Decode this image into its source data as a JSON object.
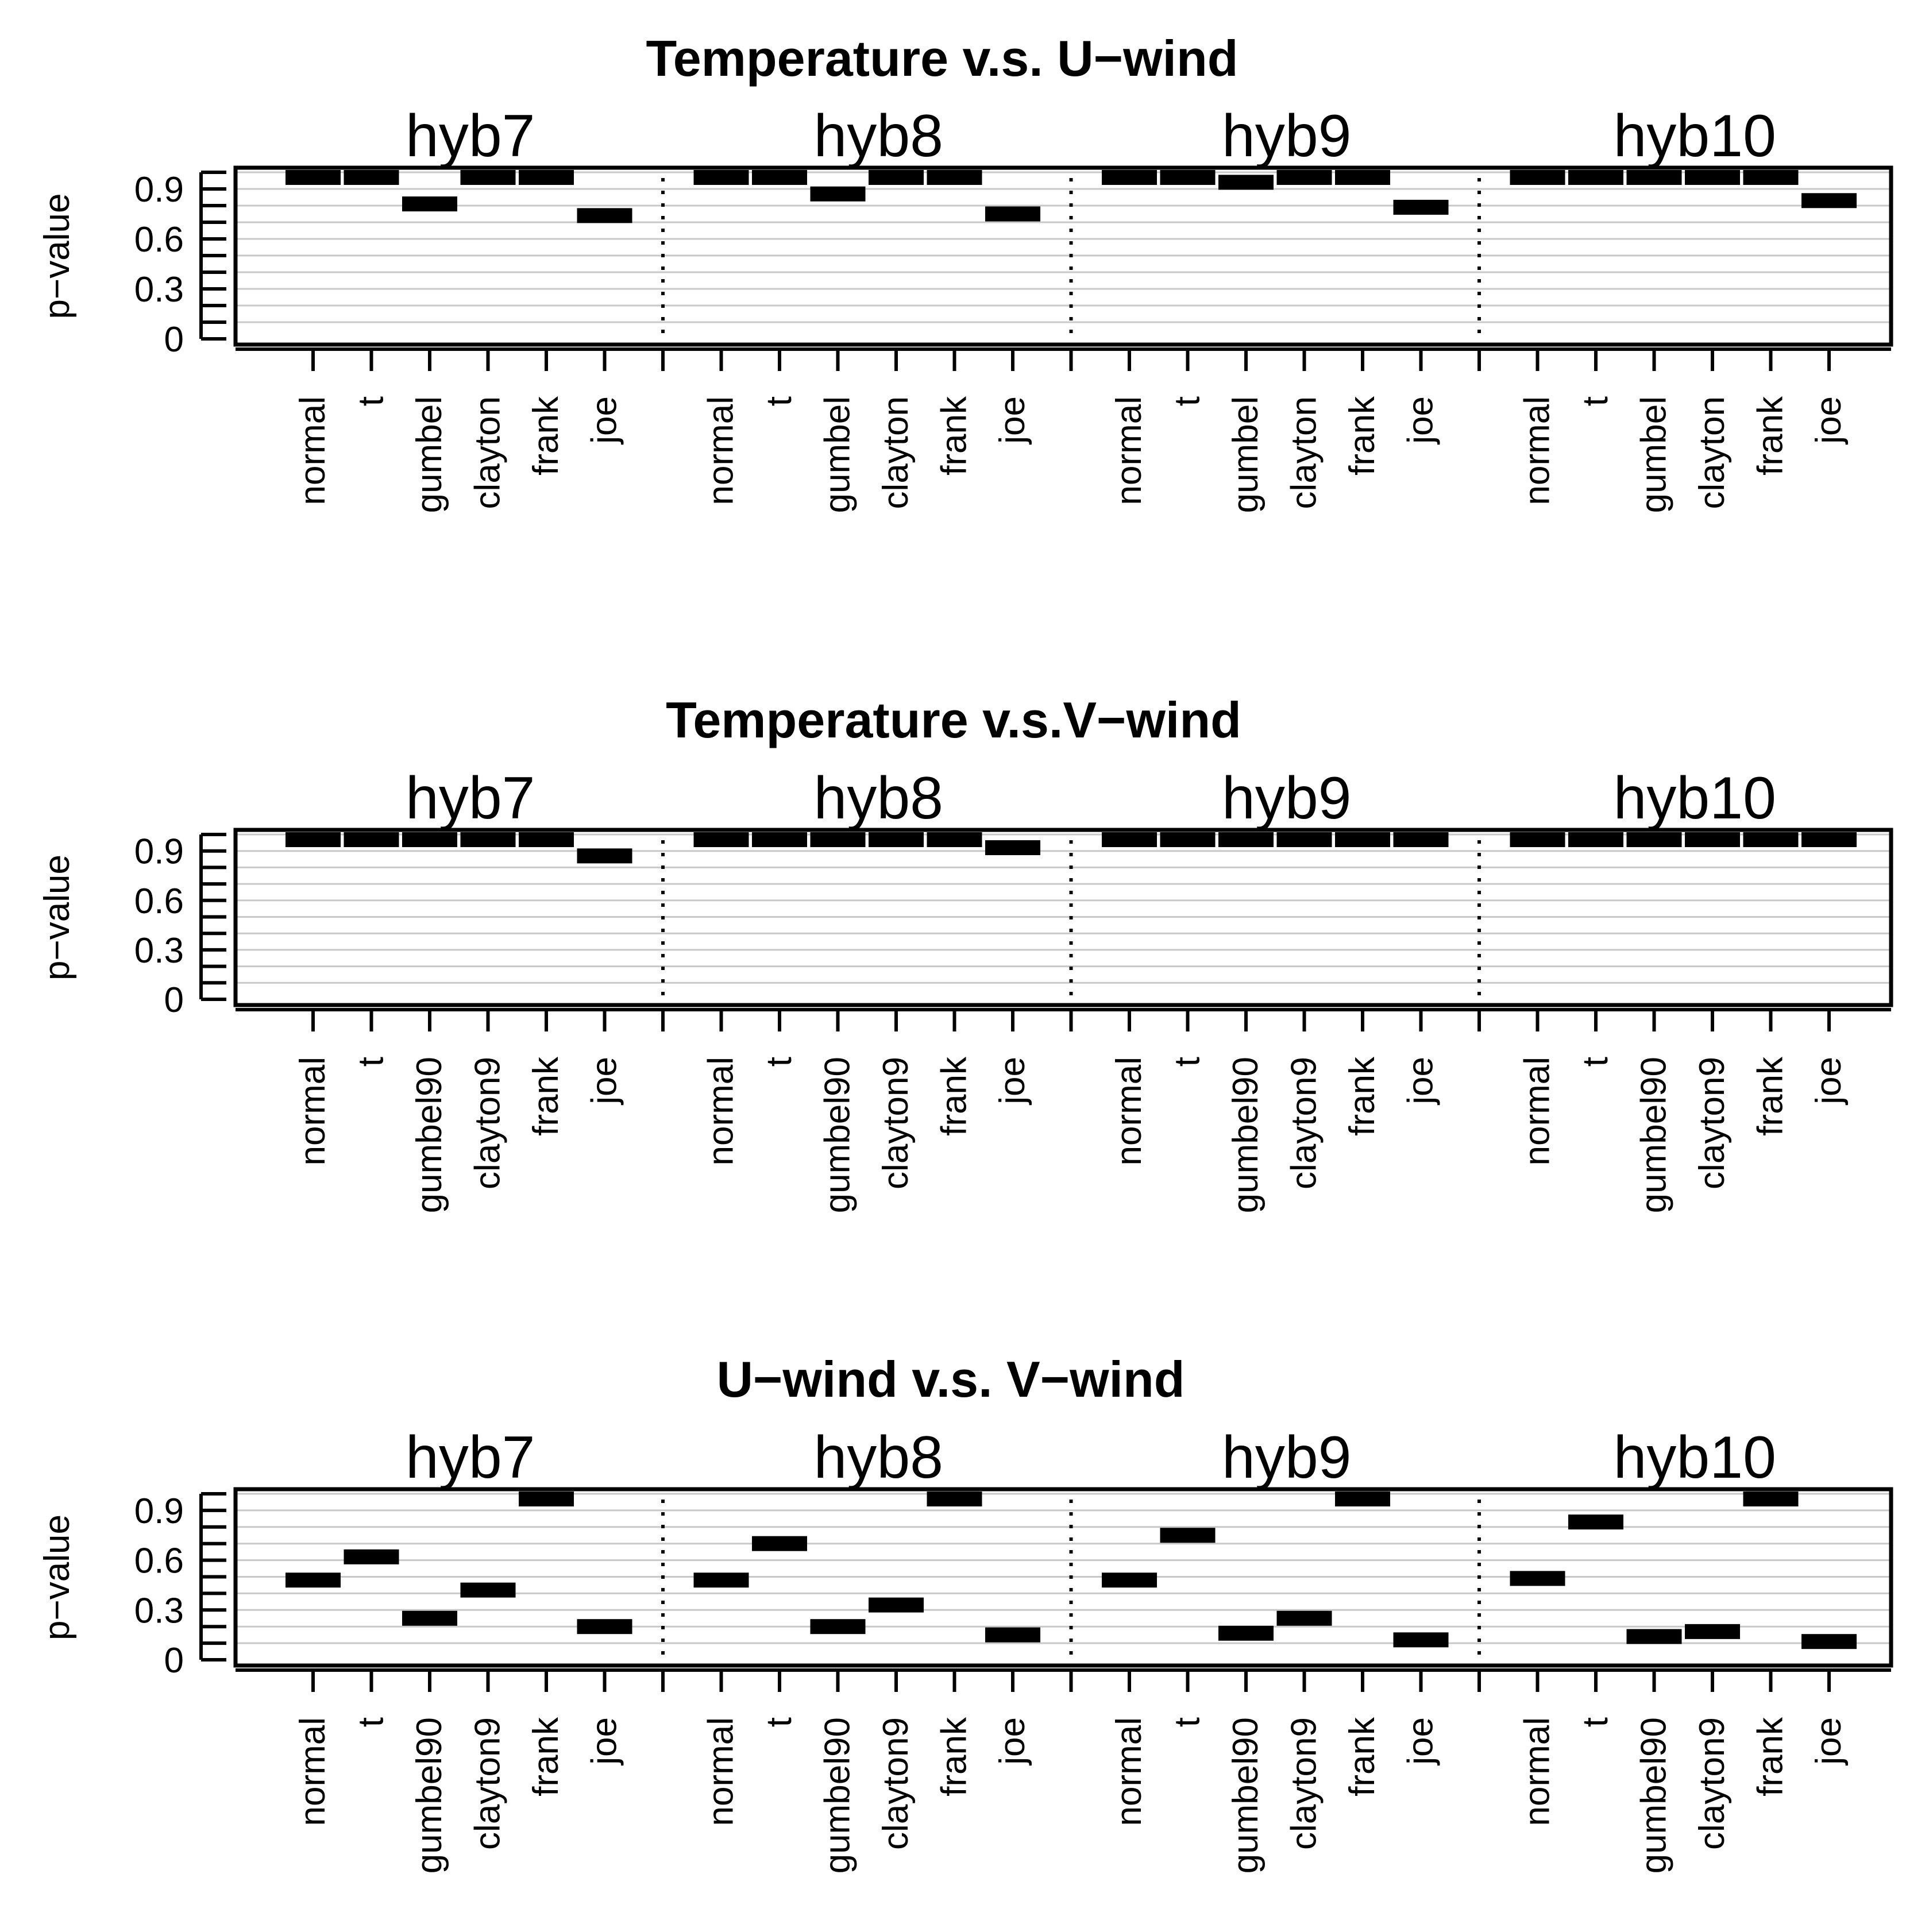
{
  "chart_data": [
    {
      "type": "bar",
      "title": "Temperature v.s. U−wind",
      "ylabel": "p−value",
      "ylim": [
        0,
        1
      ],
      "yticks": [
        0,
        0.3,
        0.6,
        0.9
      ],
      "ytick_labels": [
        "0",
        "0.3",
        "0.6",
        "0.9"
      ],
      "grid": true,
      "groups": [
        "hyb7",
        "hyb8",
        "hyb9",
        "hyb10"
      ],
      "categories": [
        "normal",
        "t",
        "gumbel",
        "clayton",
        "frank",
        "joe"
      ],
      "series": [
        {
          "name": "hyb7",
          "values": [
            1.0,
            1.0,
            0.81,
            1.0,
            1.0,
            0.74
          ]
        },
        {
          "name": "hyb8",
          "values": [
            1.0,
            1.0,
            0.87,
            1.0,
            1.0,
            0.75
          ]
        },
        {
          "name": "hyb9",
          "values": [
            1.0,
            1.0,
            0.94,
            1.0,
            1.0,
            0.79
          ]
        },
        {
          "name": "hyb10",
          "values": [
            1.0,
            1.0,
            1.0,
            1.0,
            1.0,
            0.83
          ]
        }
      ]
    },
    {
      "type": "bar",
      "title": "Temperature v.s.V−wind",
      "ylabel": "p−value",
      "ylim": [
        0,
        1
      ],
      "yticks": [
        0,
        0.3,
        0.6,
        0.9
      ],
      "ytick_labels": [
        "0",
        "0.3",
        "0.6",
        "0.9"
      ],
      "grid": true,
      "groups": [
        "hyb7",
        "hyb8",
        "hyb9",
        "hyb10"
      ],
      "categories": [
        "normal",
        "t",
        "gumbel90",
        "clayton9",
        "frank",
        "joe"
      ],
      "series": [
        {
          "name": "hyb7",
          "values": [
            1.0,
            1.0,
            1.0,
            1.0,
            1.0,
            0.87
          ]
        },
        {
          "name": "hyb8",
          "values": [
            1.0,
            1.0,
            1.0,
            1.0,
            1.0,
            0.92
          ]
        },
        {
          "name": "hyb9",
          "values": [
            1.0,
            1.0,
            1.0,
            1.0,
            1.0,
            0.99
          ]
        },
        {
          "name": "hyb10",
          "values": [
            1.0,
            1.0,
            1.0,
            1.0,
            1.0,
            1.0
          ]
        }
      ]
    },
    {
      "type": "bar",
      "title": "U−wind v.s. V−wind",
      "ylabel": "p−value",
      "ylim": [
        0,
        1
      ],
      "yticks": [
        0,
        0.3,
        0.6,
        0.9
      ],
      "ytick_labels": [
        "0",
        "0.3",
        "0.6",
        "0.9"
      ],
      "grid": true,
      "groups": [
        "hyb7",
        "hyb8",
        "hyb9",
        "hyb10"
      ],
      "categories": [
        "normal",
        "t",
        "gumbel90",
        "clayton9",
        "frank",
        "joe"
      ],
      "series": [
        {
          "name": "hyb7",
          "values": [
            0.48,
            0.62,
            0.25,
            0.42,
            1.0,
            0.2
          ]
        },
        {
          "name": "hyb8",
          "values": [
            0.48,
            0.7,
            0.2,
            0.33,
            1.0,
            0.15
          ]
        },
        {
          "name": "hyb9",
          "values": [
            0.48,
            0.75,
            0.16,
            0.25,
            1.0,
            0.12
          ]
        },
        {
          "name": "hyb10",
          "values": [
            0.49,
            0.83,
            0.14,
            0.17,
            1.0,
            0.11
          ]
        }
      ]
    }
  ]
}
